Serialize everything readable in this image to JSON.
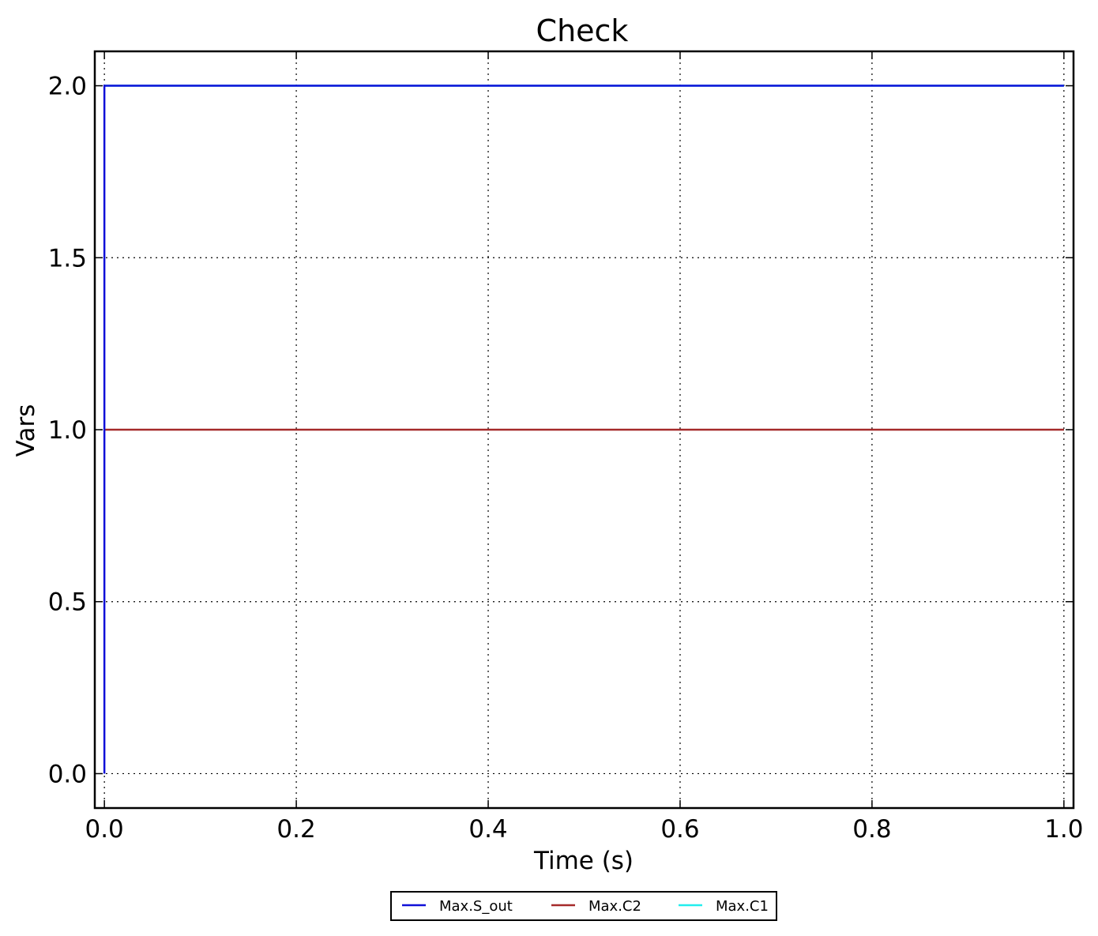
{
  "chart_data": {
    "type": "line",
    "title": "Check",
    "xlabel": "Time (s)",
    "ylabel": "Vars",
    "xlim": [
      -0.01,
      1.01
    ],
    "ylim": [
      -0.1,
      2.1
    ],
    "xticks": [
      0.0,
      0.2,
      0.4,
      0.6,
      0.8,
      1.0
    ],
    "xtick_labels": [
      "0.0",
      "0.2",
      "0.4",
      "0.6",
      "0.8",
      "1.0"
    ],
    "yticks": [
      0.0,
      0.5,
      1.0,
      1.5,
      2.0
    ],
    "ytick_labels": [
      "0.0",
      "0.5",
      "1.0",
      "1.5",
      "2.0"
    ],
    "grid": true,
    "legend_position": "below-center",
    "series": [
      {
        "name": "Max.S_out",
        "color": "#1010d8",
        "x": [
          0.0,
          0.0,
          1.0
        ],
        "y": [
          0.0,
          2.0,
          2.0
        ]
      },
      {
        "name": "Max.C2",
        "color": "#a52a2a",
        "x": [
          0.0,
          1.0
        ],
        "y": [
          1.0,
          1.0
        ]
      },
      {
        "name": "Max.C1",
        "color": "#22eeee",
        "x": [
          0.0,
          1.0
        ],
        "y": [
          2.0,
          2.0
        ]
      }
    ]
  }
}
